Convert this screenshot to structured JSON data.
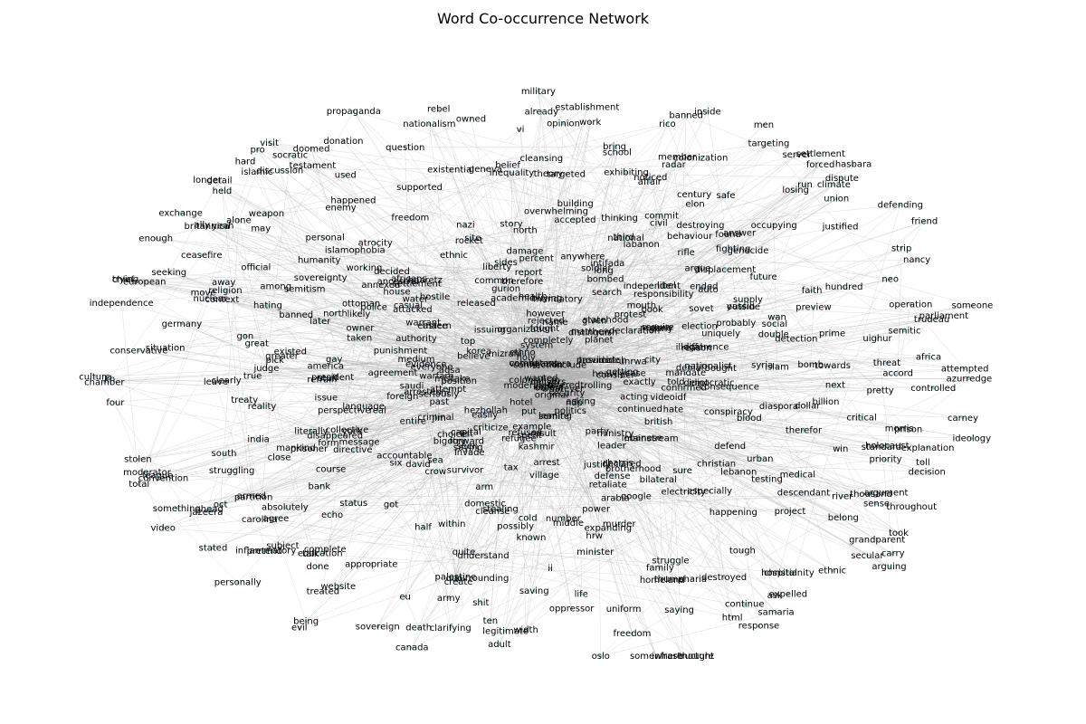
{
  "title": "Word Co-occurrence Network",
  "colors": {
    "edge": "#b0b0b0",
    "node": "#8fd3e8",
    "label": "#000000",
    "background": "#ffffff"
  },
  "words": [
    "kh",
    "echo",
    "personal",
    "nationalist",
    "disappeared",
    "language",
    "christianity",
    "ancestral",
    "expanding",
    "ndp",
    "atrocity",
    "tough",
    "chamber",
    "targeting",
    "trudeau",
    "anywhere",
    "freedom",
    "fought",
    "known",
    "took",
    "done",
    "owner",
    "decided",
    "electricity",
    "name",
    "supply",
    "targeted",
    "inequality",
    "libel",
    "delivers",
    "rifle",
    "suicide",
    "bombed",
    "alone",
    "secular",
    "elon",
    "consider",
    "treaty",
    "put",
    "uniform",
    "prime",
    "culture",
    "operation",
    "eastern",
    "house",
    "illegal",
    "evil",
    "cold",
    "ended",
    "donation",
    "saving",
    "criticize",
    "supported",
    "establishment",
    "minister",
    "arabia",
    "quite",
    "justify",
    "existential",
    "early",
    "losing",
    "used",
    "bilateral",
    "six",
    "labanon",
    "syria",
    "defense",
    "islam",
    "conservative",
    "doomed",
    "combatant",
    "intifada",
    "saudi",
    "regime",
    "stealing",
    "fighting",
    "damage",
    "among",
    "rico",
    "annexed",
    "complete",
    "four",
    "system",
    "criminal",
    "semitism",
    "forced",
    "html",
    "occupying",
    "exactly",
    "ta",
    "thinking",
    "brotherhood",
    "punishment",
    "visit",
    "likely",
    "book",
    "judge",
    "member",
    "however",
    "invade",
    "declared",
    "oppressor",
    "blood",
    "security",
    "semitic",
    "yeah",
    "rocket",
    "defend",
    "water",
    "confirmed",
    "mandatory",
    "america",
    "possibly",
    "armed",
    "choice",
    "voting",
    "destroyed",
    "hate",
    "create",
    "argue",
    "sovereignty",
    "independence",
    "whatever",
    "struggling",
    "radar",
    "quo",
    "eu",
    "sea",
    "samaria",
    "humanity",
    "foreign",
    "election",
    "list",
    "stolen",
    "heavily",
    "north",
    "school",
    "protest",
    "democratic",
    "position",
    "got",
    "genocide",
    "towards",
    "past",
    "include",
    "entire",
    "middle",
    "national",
    "given",
    "life",
    "talk",
    "lebanon",
    "mankind",
    "africa",
    "bring",
    "africans",
    "arrested",
    "diaspora",
    "stated",
    "therefore",
    "double",
    "health",
    "hospital",
    "palestine",
    "evidence",
    "testing",
    "seeking",
    "homeland",
    "opinion",
    "sovereign",
    "soldier",
    "independent",
    "surrounding",
    "getting",
    "murder",
    "river",
    "critical",
    "leader",
    "next",
    "domestic",
    "later",
    "civil",
    "faith",
    "believe",
    "wanted",
    "within",
    "family",
    "win",
    "thought",
    "consequence",
    "british",
    "original",
    "rebel",
    "decision",
    "threat",
    "displacement",
    "carry",
    "example",
    "uniquely",
    "settlement",
    "agree",
    "literally",
    "offered",
    "party",
    "moderated",
    "medical",
    "result",
    "ideology",
    "ministry",
    "happening",
    "buying",
    "subject",
    "ii",
    "strip",
    "police",
    "commit",
    "christian",
    "real",
    "completely",
    "continue",
    "owned",
    "nuclear",
    "carolina",
    "third",
    "controlled",
    "may",
    "ten",
    "told",
    "collective",
    "discussion",
    "matthew",
    "attacked",
    "everyone",
    "death",
    "hating",
    "acting",
    "percent",
    "president",
    "friend",
    "village",
    "league",
    "project",
    "destroying",
    "banned",
    "education",
    "building",
    "city",
    "toll",
    "defending",
    "mace",
    "agreement",
    "organization",
    "nationalism",
    "authority",
    "away",
    "happened",
    "true",
    "thousand",
    "bank",
    "reason",
    "power",
    "already",
    "status",
    "korea",
    "tax",
    "width",
    "website",
    "belong",
    "auto",
    "social",
    "gay",
    "partition",
    "close",
    "oct",
    "colonialism",
    "kashmir",
    "mainstream",
    "hundred",
    "seen",
    "saying",
    "someone",
    "something",
    "preview",
    "work",
    "greater",
    "refrain",
    "weapon",
    "personally",
    "absolutely",
    "explanation",
    "york",
    "semite",
    "medium",
    "convention",
    "planet",
    "issue",
    "trying",
    "mistake",
    "understand",
    "long",
    "belief",
    "hard",
    "total",
    "affair",
    "overwhelming",
    "vi",
    "pro",
    "geneva",
    "video",
    "accord",
    "especially",
    "response",
    "server",
    "mandate",
    "official",
    "religion",
    "require",
    "pick",
    "situation",
    "standard",
    "question",
    "freedom",
    "european",
    "probably",
    "carney",
    "ethno",
    "clearly",
    "aqsa",
    "gurion",
    "enough",
    "outside",
    "north",
    "prisoner",
    "pretend",
    "south",
    "mouth",
    "directive",
    "run",
    "others",
    "provide",
    "course",
    "bomb",
    "bought",
    "rejected",
    "accepted",
    "appropriate",
    "statehood",
    "holocaust",
    "hezbollah",
    "leave",
    "refugee",
    "chief",
    "moderator",
    "ceasefire",
    "nazi",
    "existed",
    "expelled",
    "legitimate",
    "throughout",
    "move",
    "jazeera",
    "hotel",
    "uighur",
    "responsibility",
    "context",
    "military",
    "infrastructure",
    "sides",
    "story",
    "ottoman",
    "argument",
    "pretty",
    "sure",
    "message",
    "taken",
    "therefor",
    "future",
    "canada",
    "britannica",
    "great",
    "working",
    "jim",
    "thump",
    "testament",
    "half",
    "nancy",
    "oslo",
    "hi",
    "easily",
    "spent",
    "capital",
    "arm",
    "struggle",
    "stuff",
    "enemy",
    "number",
    "being",
    "settlement",
    "haaretz",
    "sense",
    "propaganda",
    "dispute",
    "noticed",
    "inflammatory",
    "descendant",
    "detail",
    "longer",
    "century",
    "david",
    "ahead",
    "men",
    "crow",
    "survivor",
    "ethnic",
    "idiot",
    "site",
    "attempt",
    "shit",
    "reality",
    "aljazeera",
    "case",
    "distinguish",
    "hostile",
    "holy",
    "retaliate",
    "report",
    "justified",
    "connection",
    "perspective",
    "answer",
    "banned",
    "released",
    "prison",
    "asking",
    "forward",
    "exhibiting",
    "match",
    "islamic",
    "hasbara",
    "hrw",
    "socratic",
    "ask",
    "videoidf",
    "safe",
    "dollar",
    "azurredge",
    "lebanese",
    "politics",
    "morris",
    "climate",
    "continued",
    "gon",
    "warrant",
    "cleanse",
    "neo",
    "somewhere",
    "detection",
    "bigotry",
    "army",
    "casual",
    "difference",
    "seriously",
    "unrwa",
    "islamophobia",
    "refused",
    "billion",
    "arguing",
    "inside",
    "denial",
    "behaviour",
    "google",
    "form",
    "ally",
    "colonization",
    "harris",
    "yassin",
    "trolling",
    "academic",
    "theory",
    "mizrahi",
    "conspiracy",
    "clarifying",
    "kalfour",
    "grandparent",
    "germany",
    "saying",
    "ethnic",
    "cleansing",
    "warfare",
    "treated",
    "issuing",
    "declaration",
    "adult",
    "leaning",
    "accountable",
    "top",
    "wan",
    "common",
    "liberty",
    "urban",
    "arrest",
    "priority",
    "found",
    "attempted",
    "held",
    "search",
    "india",
    "union",
    "exchange",
    "sovet",
    "sharia",
    "parliament"
  ]
}
